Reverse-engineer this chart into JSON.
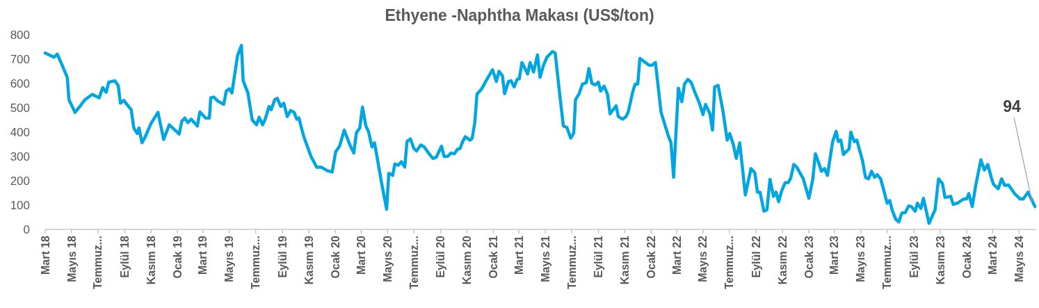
{
  "chart_data": {
    "type": "line",
    "title": "Ethyene -Naphtha Makası (US$/ton)",
    "x": [
      "2018-03-01",
      "2018-03-21",
      "2018-03-29",
      "2018-04-10",
      "2018-04-21",
      "2018-04-25",
      "2018-05-09",
      "2018-05-20",
      "2018-06-01",
      "2018-06-18",
      "2018-07-04",
      "2018-07-12",
      "2018-07-20",
      "2018-07-26",
      "2018-08-09",
      "2018-08-17",
      "2018-08-22",
      "2018-08-30",
      "2018-09-16",
      "2018-09-22",
      "2018-09-30",
      "2018-10-04",
      "2018-10-11",
      "2018-10-17",
      "2018-11-01",
      "2018-11-17",
      "2018-11-30",
      "2018-12-13",
      "2019-01-05",
      "2019-01-11",
      "2019-01-18",
      "2019-01-25",
      "2019-02-02",
      "2019-02-16",
      "2019-02-22",
      "2019-03-07",
      "2019-03-16",
      "2019-03-19",
      "2019-03-26",
      "2019-04-04",
      "2019-04-18",
      "2019-04-24",
      "2019-05-01",
      "2019-05-07",
      "2019-05-20",
      "2019-05-29",
      "2019-06-02",
      "2019-06-13",
      "2019-06-23",
      "2019-07-03",
      "2019-07-09",
      "2019-07-17",
      "2019-07-23",
      "2019-08-01",
      "2019-08-06",
      "2019-08-14",
      "2019-08-20",
      "2019-08-28",
      "2019-09-04",
      "2019-09-12",
      "2019-09-20",
      "2019-09-28",
      "2019-10-04",
      "2019-10-09",
      "2019-10-20",
      "2019-11-06",
      "2019-11-19",
      "2019-11-30",
      "2019-12-13",
      "2019-12-25",
      "2020-01-02",
      "2020-01-11",
      "2020-01-22",
      "2020-02-04",
      "2020-02-13",
      "2020-02-19",
      "2020-02-27",
      "2020-03-04",
      "2020-03-12",
      "2020-03-18",
      "2020-03-26",
      "2020-04-01",
      "2020-04-19",
      "2020-04-29",
      "2020-05-04",
      "2020-05-13",
      "2020-05-18",
      "2020-05-26",
      "2020-06-02",
      "2020-06-10",
      "2020-06-15",
      "2020-06-23",
      "2020-07-01",
      "2020-07-07",
      "2020-07-17",
      "2020-07-25",
      "2020-08-04",
      "2020-08-14",
      "2020-08-22",
      "2020-09-03",
      "2020-09-09",
      "2020-09-17",
      "2020-09-25",
      "2020-10-03",
      "2020-10-09",
      "2020-10-16",
      "2020-10-22",
      "2020-10-28",
      "2020-11-08",
      "2020-11-13",
      "2020-11-19",
      "2020-11-24",
      "2020-12-05",
      "2020-12-17",
      "2020-12-30",
      "2021-01-08",
      "2021-01-14",
      "2021-01-22",
      "2021-01-27",
      "2021-02-05",
      "2021-02-11",
      "2021-02-18",
      "2021-02-25",
      "2021-03-02",
      "2021-03-08",
      "2021-03-13",
      "2021-03-21",
      "2021-03-27",
      "2021-04-04",
      "2021-04-13",
      "2021-04-19",
      "2021-04-27",
      "2021-05-05",
      "2021-05-18",
      "2021-05-24",
      "2021-06-04",
      "2021-06-12",
      "2021-06-20",
      "2021-06-29",
      "2021-07-06",
      "2021-07-10",
      "2021-07-18",
      "2021-07-26",
      "2021-08-04",
      "2021-08-10",
      "2021-08-17",
      "2021-08-25",
      "2021-09-01",
      "2021-09-06",
      "2021-09-14",
      "2021-09-22",
      "2021-09-28",
      "2021-10-12",
      "2021-10-17",
      "2021-10-27",
      "2021-11-04",
      "2021-11-09",
      "2021-11-20",
      "2021-11-25",
      "2021-12-01",
      "2021-12-06",
      "2021-12-27",
      "2022-01-03",
      "2022-01-11",
      "2022-01-24",
      "2022-02-10",
      "2022-02-16",
      "2022-02-22",
      "2022-03-05",
      "2022-03-13",
      "2022-03-19",
      "2022-03-27",
      "2022-04-04",
      "2022-04-11",
      "2022-04-22",
      "2022-05-01",
      "2022-05-07",
      "2022-05-17",
      "2022-05-23",
      "2022-05-28",
      "2022-06-05",
      "2022-06-16",
      "2022-06-26",
      "2022-07-02",
      "2022-07-10",
      "2022-07-17",
      "2022-07-25",
      "2022-08-07",
      "2022-08-20",
      "2022-08-29",
      "2022-09-04",
      "2022-09-10",
      "2022-09-19",
      "2022-09-26",
      "2022-10-03",
      "2022-10-11",
      "2022-10-17",
      "2022-10-23",
      "2022-10-30",
      "2022-11-07",
      "2022-11-14",
      "2022-11-20",
      "2022-11-27",
      "2022-12-04",
      "2022-12-19",
      "2023-01-01",
      "2023-01-10",
      "2023-01-16",
      "2023-01-22",
      "2023-01-30",
      "2023-02-06",
      "2023-02-13",
      "2023-02-25",
      "2023-03-05",
      "2023-03-10",
      "2023-03-16",
      "2023-03-22",
      "2023-04-04",
      "2023-04-08",
      "2023-04-16",
      "2023-04-22",
      "2023-05-05",
      "2023-05-12",
      "2023-05-19",
      "2023-05-26",
      "2023-06-02",
      "2023-06-08",
      "2023-06-16",
      "2023-06-24",
      "2023-07-01",
      "2023-07-07",
      "2023-07-13",
      "2023-07-21",
      "2023-07-28",
      "2023-08-04",
      "2023-08-12",
      "2023-08-20",
      "2023-08-26",
      "2023-09-04",
      "2023-09-09",
      "2023-09-17",
      "2023-09-23",
      "2023-10-06",
      "2023-10-20",
      "2023-10-28",
      "2023-11-06",
      "2023-11-12",
      "2023-11-25",
      "2023-12-01",
      "2023-12-11",
      "2023-12-25",
      "2024-01-01",
      "2024-01-06",
      "2024-01-14",
      "2024-01-22",
      "2024-02-03",
      "2024-02-11",
      "2024-02-19",
      "2024-02-27",
      "2024-03-03",
      "2024-03-14",
      "2024-03-22",
      "2024-03-29",
      "2024-04-07",
      "2024-04-21",
      "2024-05-04",
      "2024-05-11",
      "2024-05-22",
      "2024-06-07"
    ],
    "series": [
      {
        "color": "#00a6e2",
        "values": [
          725,
          708,
          720,
          672,
          625,
          533,
          481,
          505,
          533,
          555,
          541,
          583,
          564,
          605,
          611,
          591,
          519,
          530,
          492,
          417,
          394,
          417,
          356,
          375,
          436,
          481,
          370,
          430,
          392,
          444,
          458,
          439,
          453,
          425,
          483,
          458,
          458,
          541,
          544,
          528,
          514,
          569,
          578,
          561,
          714,
          756,
          611,
          561,
          450,
          430,
          461,
          430,
          453,
          505,
          492,
          533,
          539,
          505,
          519,
          464,
          489,
          481,
          453,
          458,
          383,
          300,
          256,
          256,
          242,
          236,
          319,
          342,
          408,
          347,
          314,
          397,
          417,
          503,
          425,
          403,
          339,
          356,
          175,
          83,
          231,
          222,
          269,
          264,
          278,
          256,
          361,
          372,
          333,
          322,
          347,
          339,
          314,
          292,
          297,
          342,
          300,
          300,
          314,
          311,
          328,
          333,
          361,
          381,
          367,
          375,
          439,
          556,
          578,
          617,
          656,
          608,
          650,
          631,
          558,
          608,
          611,
          586,
          617,
          619,
          686,
          669,
          639,
          686,
          647,
          717,
          625,
          675,
          708,
          731,
          725,
          547,
          425,
          419,
          375,
          397,
          533,
          556,
          597,
          603,
          661,
          600,
          594,
          605,
          569,
          589,
          556,
          475,
          508,
          464,
          453,
          464,
          483,
          569,
          597,
          597,
          703,
          675,
          675,
          686,
          481,
          383,
          356,
          214,
          581,
          525,
          597,
          617,
          603,
          569,
          522,
          472,
          514,
          475,
          408,
          586,
          592,
          489,
          367,
          394,
          350,
          292,
          356,
          142,
          250,
          233,
          153,
          153,
          75,
          81,
          206,
          136,
          153,
          114,
          158,
          192,
          192,
          211,
          267,
          256,
          208,
          128,
          206,
          311,
          283,
          239,
          250,
          222,
          361,
          403,
          361,
          367,
          308,
          331,
          400,
          361,
          367,
          283,
          214,
          208,
          239,
          214,
          225,
          208,
          156,
          108,
          119,
          78,
          42,
          31,
          67,
          69,
          97,
          94,
          75,
          108,
          86,
          128,
          25,
          81,
          208,
          189,
          131,
          136,
          103,
          108,
          125,
          125,
          147,
          94,
          181,
          286,
          244,
          267,
          214,
          186,
          167,
          208,
          181,
          183,
          147,
          125,
          125,
          153,
          94
        ]
      }
    ],
    "xlim": [
      "2018-03-01",
      "2024-06-10"
    ],
    "xticks": [
      {
        "value": "2018-03-01",
        "label": "Mart 18"
      },
      {
        "value": "2018-05-01",
        "label": "Mayıs 18"
      },
      {
        "value": "2018-07-01",
        "label": "Temmuz..."
      },
      {
        "value": "2018-09-01",
        "label": "Eylül 18"
      },
      {
        "value": "2018-11-01",
        "label": "Kasım 18"
      },
      {
        "value": "2019-01-01",
        "label": "Ocak 19"
      },
      {
        "value": "2019-03-01",
        "label": "Mart 19"
      },
      {
        "value": "2019-05-01",
        "label": "Mayıs 19"
      },
      {
        "value": "2019-07-01",
        "label": "Temmuz..."
      },
      {
        "value": "2019-09-01",
        "label": "Eylül 19"
      },
      {
        "value": "2019-11-01",
        "label": "Kasım 19"
      },
      {
        "value": "2020-01-01",
        "label": "Ocak 20"
      },
      {
        "value": "2020-03-01",
        "label": "Mart 20"
      },
      {
        "value": "2020-05-01",
        "label": "Mayıs 20"
      },
      {
        "value": "2020-07-01",
        "label": "Temmuz..."
      },
      {
        "value": "2020-09-01",
        "label": "Eylül 20"
      },
      {
        "value": "2020-11-01",
        "label": "Kasım 20"
      },
      {
        "value": "2021-01-01",
        "label": "Ocak 21"
      },
      {
        "value": "2021-03-01",
        "label": "Mart 21"
      },
      {
        "value": "2021-05-01",
        "label": "Mayıs 21"
      },
      {
        "value": "2021-07-01",
        "label": "Temmuz..."
      },
      {
        "value": "2021-09-01",
        "label": "Eylül 21"
      },
      {
        "value": "2021-11-01",
        "label": "Kasım 21"
      },
      {
        "value": "2022-01-01",
        "label": "Ocak 22"
      },
      {
        "value": "2022-03-01",
        "label": "Mart 22"
      },
      {
        "value": "2022-05-01",
        "label": "Mayıs 22"
      },
      {
        "value": "2022-07-01",
        "label": "Temmuz..."
      },
      {
        "value": "2022-09-01",
        "label": "Eylül 22"
      },
      {
        "value": "2022-11-01",
        "label": "Kasım 22"
      },
      {
        "value": "2023-01-01",
        "label": "Ocak 23"
      },
      {
        "value": "2023-03-01",
        "label": "Mart 23"
      },
      {
        "value": "2023-05-01",
        "label": "Mayıs 23"
      },
      {
        "value": "2023-07-01",
        "label": "Temmuz..."
      },
      {
        "value": "2023-09-01",
        "label": "Eylül 23"
      },
      {
        "value": "2023-11-01",
        "label": "Kasım 23"
      },
      {
        "value": "2024-01-01",
        "label": "Ocak 24"
      },
      {
        "value": "2024-03-01",
        "label": "Mart 24"
      },
      {
        "value": "2024-05-01",
        "label": "Mayıs 24"
      }
    ],
    "ylim": [
      0,
      800
    ],
    "yticks": [
      0,
      100,
      200,
      300,
      400,
      500,
      600,
      700,
      800
    ],
    "annotations": [
      {
        "text": "94",
        "x": "2024-06-07",
        "y": 94
      }
    ]
  }
}
